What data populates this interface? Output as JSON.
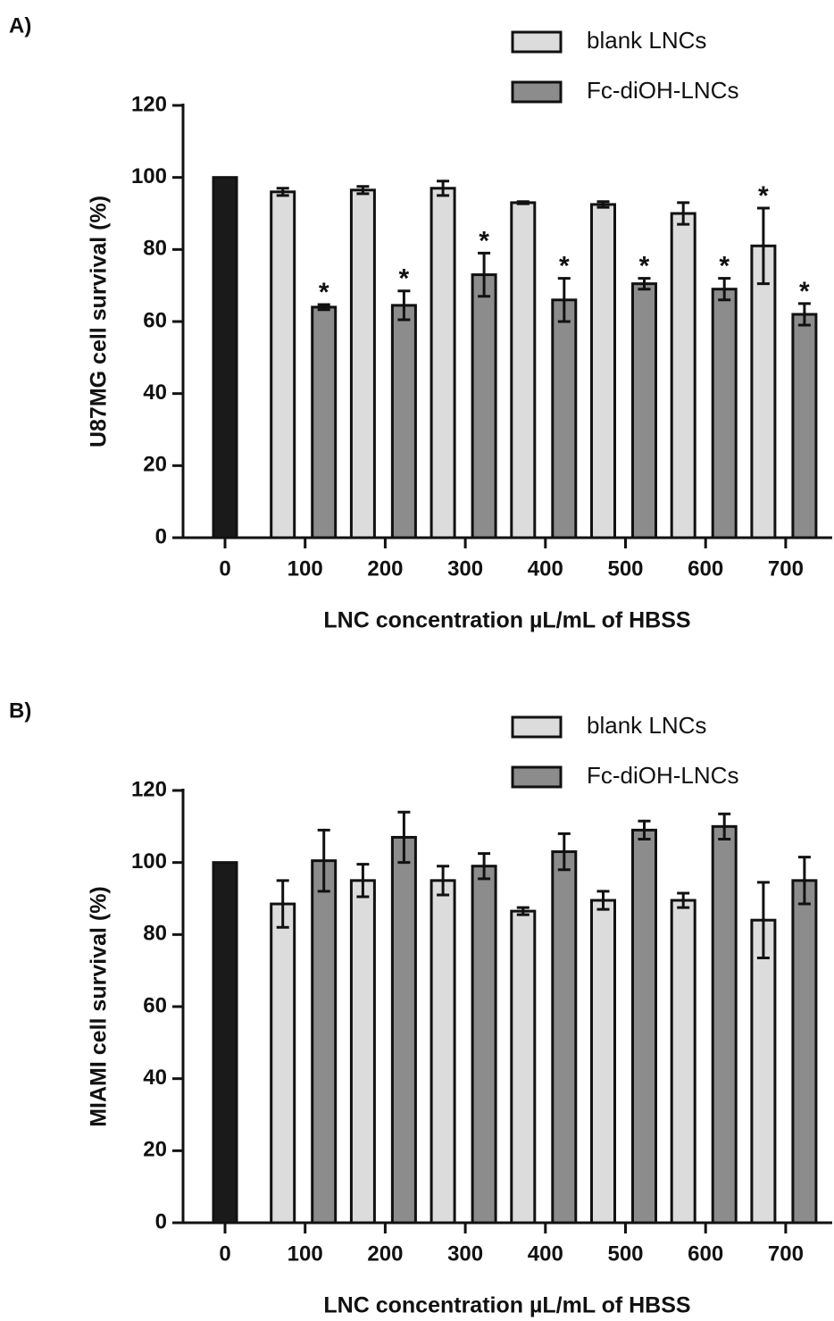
{
  "chart_data": [
    {
      "type": "bar",
      "panel_label": "A)",
      "ylabel": "U87MG cell survival (%)",
      "xlabel": "LNC concentration µL/mL of HBSS",
      "categories": [
        "0",
        "100",
        "200",
        "300",
        "400",
        "500",
        "600",
        "700"
      ],
      "ylim": [
        0,
        120
      ],
      "yticks": [
        0,
        20,
        40,
        60,
        80,
        100,
        120
      ],
      "series": [
        {
          "color": "#1a1a1a",
          "values": [
            100,
            null,
            null,
            null,
            null,
            null,
            null,
            null
          ]
        },
        {
          "name": "blank LNCs",
          "color": "#dcdcdc",
          "values": [
            null,
            96,
            96.5,
            97,
            93,
            92.5,
            90,
            81
          ],
          "errors": [
            null,
            1,
            1,
            2,
            0.3,
            0.8,
            3,
            10.5
          ],
          "annotations": [
            null,
            null,
            null,
            null,
            null,
            null,
            null,
            "*"
          ]
        },
        {
          "name": "Fc-diOH-LNCs",
          "color": "#8c8c8c",
          "values": [
            null,
            64,
            64.5,
            73,
            66,
            70.5,
            69,
            62
          ],
          "errors": [
            null,
            0.7,
            4,
            6,
            6,
            1.5,
            3,
            3
          ],
          "annotations": [
            null,
            "*",
            "*",
            "*",
            "*",
            "*",
            "*",
            "*"
          ]
        }
      ]
    },
    {
      "type": "bar",
      "panel_label": "B)",
      "ylabel": "MIAMI cell survival (%)",
      "xlabel": "LNC concentration µL/mL of HBSS",
      "categories": [
        "0",
        "100",
        "200",
        "300",
        "400",
        "500",
        "600",
        "700"
      ],
      "ylim": [
        0,
        120
      ],
      "yticks": [
        0,
        20,
        40,
        60,
        80,
        100,
        120
      ],
      "series": [
        {
          "color": "#1a1a1a",
          "values": [
            100,
            null,
            null,
            null,
            null,
            null,
            null,
            null
          ]
        },
        {
          "name": "blank LNCs",
          "color": "#dcdcdc",
          "values": [
            null,
            88.5,
            95,
            95,
            86.5,
            89.5,
            89.5,
            84
          ],
          "errors": [
            null,
            6.5,
            4.5,
            4,
            1,
            2.5,
            2,
            10.5
          ]
        },
        {
          "name": "Fc-diOH-LNCs",
          "color": "#8c8c8c",
          "values": [
            null,
            100.5,
            107,
            99,
            103,
            109,
            110,
            95
          ],
          "errors": [
            null,
            8.5,
            7,
            3.5,
            5,
            2.5,
            3.5,
            6.5
          ]
        }
      ]
    }
  ]
}
